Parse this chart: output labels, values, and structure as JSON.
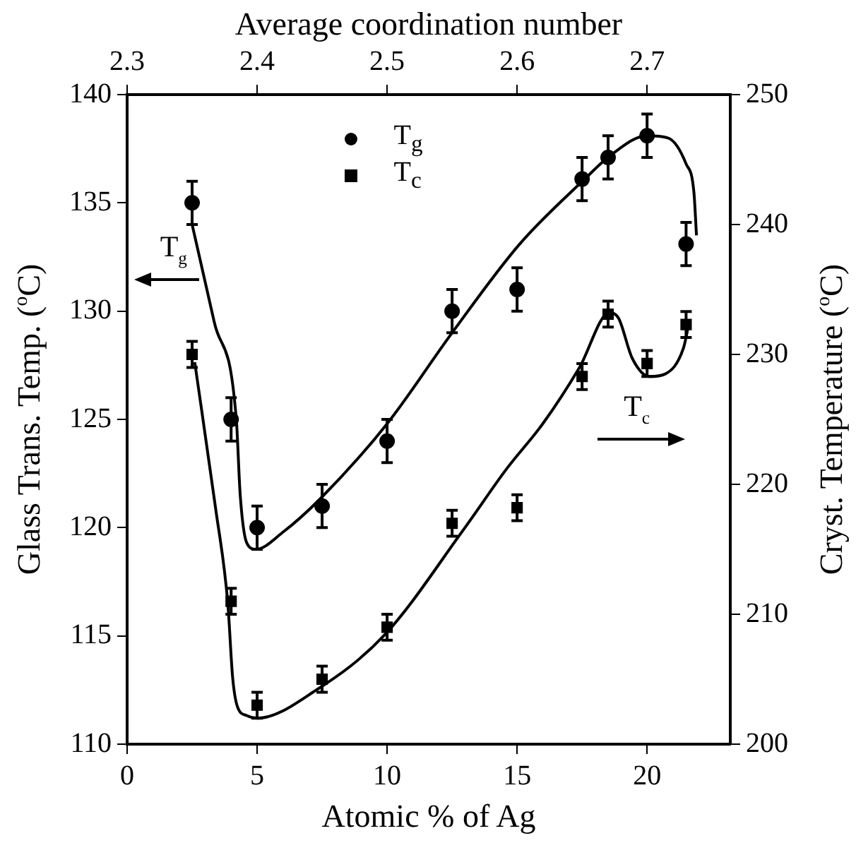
{
  "chart_data": {
    "type": "scatter",
    "xlabel": "Atomic % of Ag",
    "x2label": "Average coordination number",
    "ylabel": "Glass Trans. Temp. ($^{o}$C)",
    "y2label": "Cryst. Temperature ($^{o}$C)",
    "xlim": [
      0,
      23.2
    ],
    "xticks": [
      0,
      5,
      10,
      15,
      20
    ],
    "x2lim": [
      2.3,
      2.764
    ],
    "x2ticks": [
      2.3,
      2.4,
      2.5,
      2.6,
      2.7
    ],
    "ylim": [
      110,
      140
    ],
    "yticks": [
      110,
      115,
      120,
      125,
      130,
      135,
      140
    ],
    "y2lim": [
      200,
      250
    ],
    "y2ticks": [
      200,
      210,
      220,
      230,
      240,
      250
    ],
    "legend": "top",
    "annotations": [
      "T$_{g}$",
      "T$_{c}$"
    ],
    "x": [
      2.5,
      4,
      5,
      7.5,
      10,
      12.5,
      15,
      17.5,
      18.5,
      20,
      21.5
    ],
    "series": [
      {
        "name": "T$_{g}$",
        "color": "#000000",
        "marker": "circle",
        "values": [
          135,
          125,
          120,
          121,
          124,
          130,
          131,
          136.1,
          137.1,
          138.1,
          133.1
        ],
        "errors": [
          1,
          1,
          1,
          1,
          1,
          1,
          1,
          1,
          1,
          1,
          1
        ]
      },
      {
        "name": "T$_{c}$",
        "color": "#000000",
        "marker": "square",
        "axis": "y2",
        "values": [
          230,
          211,
          203,
          205,
          209,
          217,
          218.2,
          228.3,
          233.1,
          229.3,
          232.3
        ],
        "errors": [
          1,
          1,
          1,
          1,
          1,
          1,
          1,
          1,
          1,
          1,
          1
        ]
      },
      {
        "type": "line",
        "marker": "none",
        "color": "#000000",
        "x": [
          2.5,
          3.35,
          4.2,
          4.35,
          4.6,
          4.95,
          6,
          7.4,
          10,
          12.5,
          15.1,
          17.6,
          18.6,
          20,
          20.8,
          21.5,
          21.8,
          21.9
        ],
        "values": [
          134,
          129.5,
          125,
          121.5,
          119.3,
          119,
          119.8,
          121.3,
          124.8,
          129,
          133.1,
          136.1,
          137.2,
          138.1,
          138,
          136.8,
          135.5,
          133.5
        ]
      },
      {
        "type": "line",
        "marker": "none",
        "color": "#000000",
        "axis": "y2",
        "x": [
          2.6,
          3.4,
          3.87,
          4.06,
          4.24,
          4.6,
          5,
          7.3,
          9.9,
          12.97,
          14.6,
          16,
          17.4,
          18.55,
          18.9,
          19.43,
          20.1,
          20.7,
          21.4,
          21.6
        ],
        "values": [
          229.4,
          218.2,
          210.9,
          205.1,
          202.9,
          202.2,
          202,
          204.2,
          208.4,
          216.6,
          221.2,
          224.7,
          229,
          233.2,
          232.8,
          229.7,
          228.3,
          228.5,
          230.5,
          232.3
        ]
      }
    ]
  }
}
